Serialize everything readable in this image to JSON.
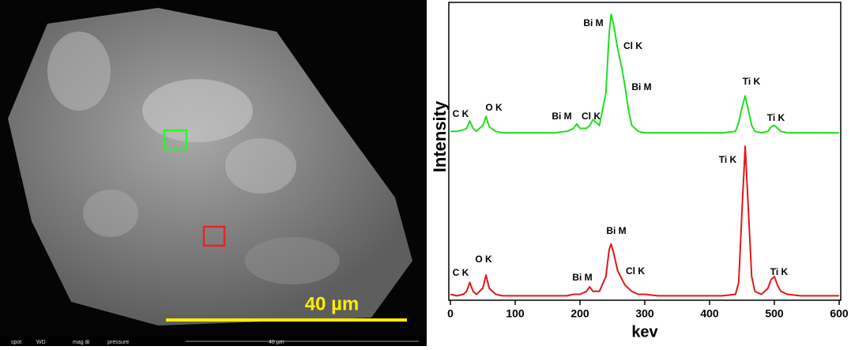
{
  "image": {
    "scale_label": "40 µm",
    "info_bar": [
      "spot",
      "WD",
      "mag ⊞",
      "pressure",
      "40 µm"
    ]
  },
  "chart_data": {
    "type": "line",
    "xlabel": "kev",
    "ylabel": "Intensity",
    "x": [
      0,
      10,
      20,
      25,
      30,
      35,
      40,
      50,
      55,
      60,
      70,
      80,
      100,
      120,
      140,
      160,
      180,
      190,
      195,
      200,
      210,
      215,
      220,
      230,
      240,
      245,
      248,
      252,
      258,
      265,
      270,
      275,
      280,
      290,
      300,
      320,
      340,
      360,
      380,
      400,
      420,
      440,
      445,
      450,
      455,
      460,
      465,
      470,
      480,
      490,
      495,
      500,
      505,
      510,
      520,
      540,
      560,
      580,
      600
    ],
    "xlim": [
      0,
      600
    ],
    "xticks": [
      0,
      100,
      200,
      300,
      400,
      500,
      600
    ],
    "ylim": [
      0,
      100
    ],
    "series": [
      {
        "color": "#22dd22",
        "labels": [
          "C K",
          "O K",
          "Bi M",
          "Cl K",
          "Bi M",
          "Cl K",
          "Bi M",
          "Ti K",
          "Ti K"
        ],
        "values": [
          57,
          57,
          57.5,
          58,
          60.5,
          58,
          57,
          59,
          62,
          58.5,
          57,
          56.5,
          56.5,
          56.5,
          56.5,
          56.5,
          57,
          58,
          59.5,
          58,
          58,
          59,
          61,
          59,
          70,
          90,
          96.5,
          93,
          85,
          78,
          71.5,
          64,
          59,
          57,
          56.5,
          56.5,
          56.5,
          56.5,
          56.5,
          56.5,
          56.5,
          57,
          60,
          65,
          69,
          64,
          59,
          57,
          56.5,
          57,
          58.5,
          59,
          58,
          57,
          56.5,
          56.5,
          56.5,
          56.5,
          56.5
        ]
      },
      {
        "color": "#e01818",
        "labels": [
          "C K",
          "O K",
          "Bi M",
          "Cl K",
          "Bi M",
          "Ti K",
          "Ti K"
        ],
        "values": [
          2,
          1.5,
          2,
          3,
          6,
          3,
          2,
          4,
          8.5,
          4,
          2,
          1.5,
          1.5,
          1.5,
          1.5,
          1.5,
          1.5,
          2,
          2,
          2,
          3,
          4.5,
          3,
          3,
          8,
          17,
          19,
          16,
          10,
          7,
          5,
          4,
          3,
          2,
          2,
          1.5,
          1.5,
          1.5,
          1.5,
          1.5,
          1.5,
          2,
          6,
          30,
          52,
          30,
          8,
          3,
          2,
          4,
          7,
          8,
          5,
          3,
          2,
          1.5,
          1.5,
          1.5,
          1.5
        ]
      }
    ]
  }
}
